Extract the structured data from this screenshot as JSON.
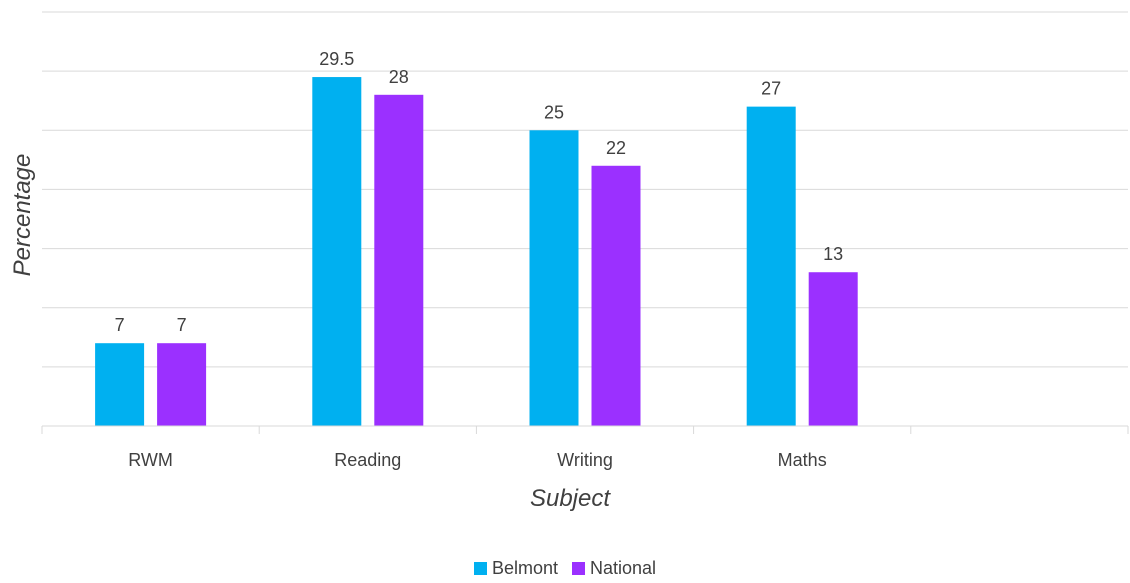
{
  "chart_data": {
    "type": "bar",
    "categories": [
      "RWM",
      "Reading",
      "Writing",
      "Maths",
      ""
    ],
    "series": [
      {
        "name": "Belmont",
        "color": "#00B0F0",
        "values": [
          7,
          29.5,
          25,
          27,
          null
        ]
      },
      {
        "name": "National",
        "color": "#9B30FF",
        "values": [
          7,
          28,
          22,
          13,
          null
        ]
      }
    ],
    "xlabel": "Subject",
    "ylabel": "Percentage",
    "ylim": [
      0,
      35
    ],
    "grid": true,
    "legend_position": "bottom"
  }
}
